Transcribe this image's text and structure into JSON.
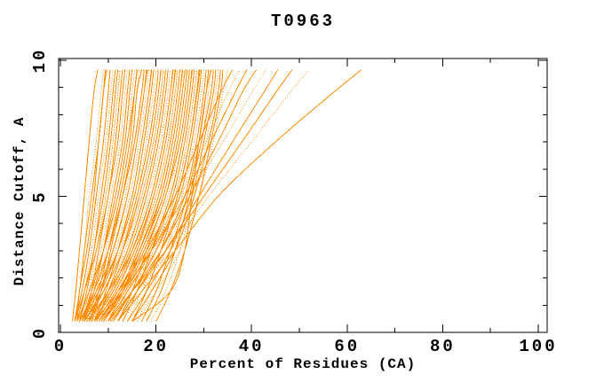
{
  "chart_data": {
    "type": "line",
    "title": "T0963",
    "xlabel": "Percent of Residues (CA)",
    "ylabel": "Distance Cutoff, A",
    "xlim": [
      0,
      101.9
    ],
    "ylim": [
      0,
      10.07
    ],
    "x_major_ticks": [
      0,
      20,
      40,
      60,
      80,
      100
    ],
    "x_minor_ticks": [
      10,
      30,
      50,
      70,
      90
    ],
    "y_major_ticks": [
      0,
      5,
      10
    ],
    "y_minor_ticks": [
      1,
      2,
      3,
      4,
      6,
      7,
      8,
      9
    ],
    "grid": false,
    "legend": "none",
    "line_color": "#ff8c00",
    "axis_color": "#000000",
    "background_color": "#ffffff",
    "series_y_levels": [
      0.4,
      1.5,
      3,
      5,
      7,
      8.8,
      9.65
    ],
    "series": [
      [
        2.5,
        3.2,
        4,
        5,
        6,
        7,
        7.8
      ],
      [
        3,
        4,
        5,
        6,
        7.5,
        8.5,
        9
      ],
      [
        3.5,
        4,
        5.5,
        7,
        8,
        9,
        9.7
      ],
      [
        3,
        4.5,
        6,
        7.5,
        9,
        10,
        10.4
      ],
      [
        4,
        5,
        6.5,
        8,
        9.5,
        10.5,
        11
      ],
      [
        3.5,
        5,
        7,
        8.5,
        10,
        11,
        11.5
      ],
      [
        4,
        5.5,
        7,
        9,
        10.5,
        11.5,
        12
      ],
      [
        4.5,
        6,
        7.5,
        9.5,
        11,
        12,
        12.5
      ],
      [
        3,
        5,
        7.5,
        10,
        11.5,
        12.5,
        13
      ],
      [
        5,
        6.5,
        8,
        10,
        12,
        13,
        13.5
      ],
      [
        4,
        6,
        8.5,
        10.5,
        12.5,
        13.5,
        14
      ],
      [
        5,
        7,
        9,
        11,
        13,
        14,
        14.5
      ],
      [
        4.5,
        6.5,
        9,
        11.5,
        13.5,
        14.5,
        15
      ],
      [
        5.5,
        7.5,
        9.5,
        12,
        14,
        15,
        15.5
      ],
      [
        3.5,
        6,
        9,
        12,
        14,
        15.5,
        16
      ],
      [
        6,
        8,
        10,
        12.5,
        14.5,
        15.5,
        16
      ],
      [
        5,
        7.5,
        10,
        13,
        15,
        16,
        16.5
      ],
      [
        6.5,
        8.5,
        10.5,
        13,
        15,
        16,
        17
      ],
      [
        3,
        4,
        5,
        6.5,
        8,
        9,
        9.4
      ],
      [
        4,
        5.5,
        7.5,
        9.5,
        11,
        12,
        12.4
      ],
      [
        4,
        7,
        10,
        13,
        15.5,
        17,
        17.5
      ],
      [
        6,
        8.5,
        11,
        14,
        16,
        17.5,
        18
      ],
      [
        5,
        8,
        11.5,
        14.5,
        16.5,
        18,
        18.5
      ],
      [
        7,
        9.5,
        12,
        15,
        17,
        18.5,
        19
      ],
      [
        4.5,
        8,
        12,
        15.5,
        17.5,
        19,
        19.5
      ],
      [
        6,
        9,
        12.5,
        16,
        18,
        19.5,
        20
      ],
      [
        7.5,
        10,
        13,
        16,
        18.5,
        20,
        20.5
      ],
      [
        5,
        9,
        13,
        16.5,
        19,
        20.5,
        21
      ],
      [
        8,
        11,
        14,
        17,
        19.5,
        21,
        21.5
      ],
      [
        6,
        10,
        14,
        17.5,
        20,
        21.5,
        22
      ],
      [
        7,
        10.5,
        14.5,
        18,
        20.5,
        22,
        22.5
      ],
      [
        8.5,
        12,
        15,
        18.5,
        21,
        22.5,
        23
      ],
      [
        5.5,
        10,
        15,
        19,
        21.5,
        23,
        23.5
      ],
      [
        9,
        12.5,
        16,
        19.5,
        22,
        23.5,
        24
      ],
      [
        6.5,
        11,
        16,
        20,
        22.5,
        24,
        24.5
      ],
      [
        10,
        13,
        16.5,
        20.5,
        23,
        24.5,
        25
      ],
      [
        7,
        12,
        17,
        21,
        23.5,
        25,
        25.5
      ],
      [
        11,
        14,
        17.5,
        21.5,
        24,
        25.5,
        26
      ],
      [
        8,
        12.5,
        17.5,
        22,
        24.5,
        26,
        26.5
      ],
      [
        12,
        15,
        18,
        22,
        25,
        26.5,
        27
      ],
      [
        9,
        13,
        18,
        22.5,
        25,
        26.5,
        27
      ],
      [
        13,
        16,
        19,
        23,
        25.5,
        27,
        27.5
      ],
      [
        10,
        14,
        19,
        23.5,
        26,
        27.5,
        28
      ],
      [
        14,
        17,
        20,
        24,
        26.5,
        28,
        28.5
      ],
      [
        15,
        18,
        21,
        24.5,
        27,
        28.5,
        29
      ],
      [
        11,
        15,
        20,
        25,
        27.5,
        29,
        29.5
      ],
      [
        16,
        19,
        22,
        25.5,
        28,
        29.5,
        30
      ],
      [
        12,
        16,
        21,
        26,
        28.5,
        30,
        30.5
      ],
      [
        17,
        20,
        23,
        26.5,
        29,
        30.5,
        31
      ],
      [
        13,
        17,
        22,
        26.5,
        29.5,
        31,
        31.5
      ],
      [
        18,
        21,
        24,
        27,
        29.5,
        31.5,
        32
      ],
      [
        14,
        18,
        23,
        27.5,
        30,
        32,
        32.5
      ],
      [
        19,
        22,
        25,
        28,
        30.5,
        32.5,
        33
      ],
      [
        15,
        19,
        24,
        28,
        31,
        33,
        33.5
      ],
      [
        20,
        23,
        26,
        29,
        31.5,
        33.5,
        34
      ],
      [
        16,
        20,
        25,
        29,
        32,
        34,
        35
      ],
      [
        15,
        23,
        26,
        27.5,
        29,
        30.5,
        31.5
      ],
      [
        9,
        13,
        18,
        24,
        29,
        33.5,
        36
      ],
      [
        10,
        14,
        19,
        25,
        30.5,
        35,
        37.5
      ],
      [
        8,
        13,
        19,
        26,
        31.5,
        36.5,
        39
      ],
      [
        11,
        15,
        21,
        27,
        33,
        38,
        41
      ],
      [
        9.5,
        14,
        20,
        27,
        34,
        40,
        43
      ],
      [
        12,
        16,
        22,
        29,
        36,
        42.5,
        45.5
      ],
      [
        10,
        15,
        22,
        30,
        38,
        45,
        48.5
      ],
      [
        11,
        16,
        23,
        31,
        40,
        48,
        52
      ],
      [
        12,
        17,
        24,
        33,
        45,
        57,
        63
      ],
      [
        4,
        7.5,
        11,
        14,
        16,
        17.5,
        18.2
      ],
      [
        5.5,
        9,
        13,
        17,
        19.5,
        21,
        21.6
      ],
      [
        7,
        11,
        15,
        19,
        21.5,
        23,
        23.6
      ],
      [
        8,
        12,
        16.5,
        21,
        23.5,
        25,
        25.6
      ],
      [
        6,
        10.5,
        15.5,
        20,
        22.5,
        24,
        24.6
      ],
      [
        9,
        13.5,
        18.5,
        23,
        25.5,
        27,
        27.6
      ],
      [
        10.5,
        15,
        20,
        24.5,
        27,
        28.6,
        29.2
      ],
      [
        3.5,
        6.5,
        10,
        13.5,
        15.5,
        17,
        17.6
      ],
      [
        4.5,
        7,
        10,
        12.5,
        14.5,
        15.5,
        16.1
      ],
      [
        5,
        8.5,
        12,
        15,
        17,
        18.5,
        19.1
      ],
      [
        6.5,
        10,
        13.5,
        16.5,
        19,
        20.5,
        21.1
      ],
      [
        7.5,
        11.5,
        15.5,
        19.5,
        22,
        23.5,
        24.1
      ],
      [
        8.5,
        13,
        17,
        21.5,
        24,
        25.5,
        26.1
      ],
      [
        9.5,
        14.5,
        19.5,
        24,
        26.5,
        28,
        28.6
      ]
    ]
  }
}
